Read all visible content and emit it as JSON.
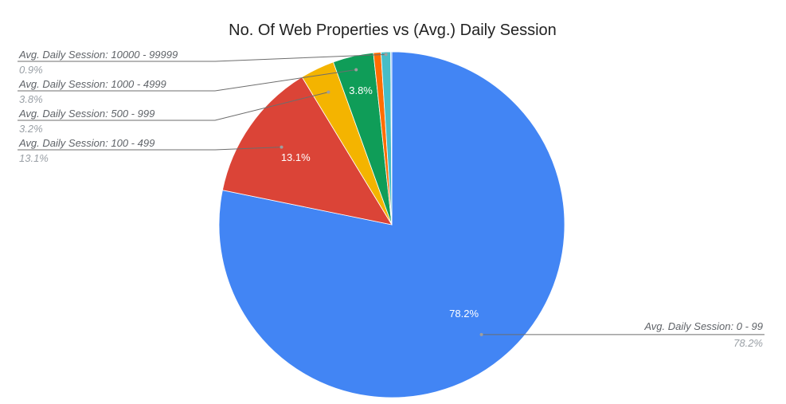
{
  "chart_data": {
    "type": "pie",
    "title": "No. Of Web Properties  vs (Avg.) Daily Session",
    "slices": [
      {
        "label": "Avg. Daily Session: 0 - 99",
        "value": 78.2,
        "pct_label": "78.2%",
        "color": "#4285f4",
        "show_inner_label": true
      },
      {
        "label": "Avg. Daily Session: 100 - 499",
        "value": 13.1,
        "pct_label": "13.1%",
        "color": "#db4437",
        "show_inner_label": true
      },
      {
        "label": "Avg. Daily Session: 500 - 999",
        "value": 3.2,
        "pct_label": "3.2%",
        "color": "#f4b400",
        "show_inner_label": false
      },
      {
        "label": "Avg. Daily Session: 1000 - 4999",
        "value": 3.8,
        "pct_label": "3.8%",
        "color": "#0f9d58",
        "show_inner_label": true
      },
      {
        "label": "",
        "value": 0.7,
        "pct_label": "",
        "color": "#ff6d01",
        "show_inner_label": false
      },
      {
        "label": "Avg. Daily Session: 10000 - 99999",
        "value": 0.9,
        "pct_label": "0.9%",
        "color": "#46bdc6",
        "show_inner_label": false
      },
      {
        "label": "",
        "value": 0.1,
        "pct_label": "",
        "color": "#7baaf7",
        "show_inner_label": false
      }
    ]
  }
}
